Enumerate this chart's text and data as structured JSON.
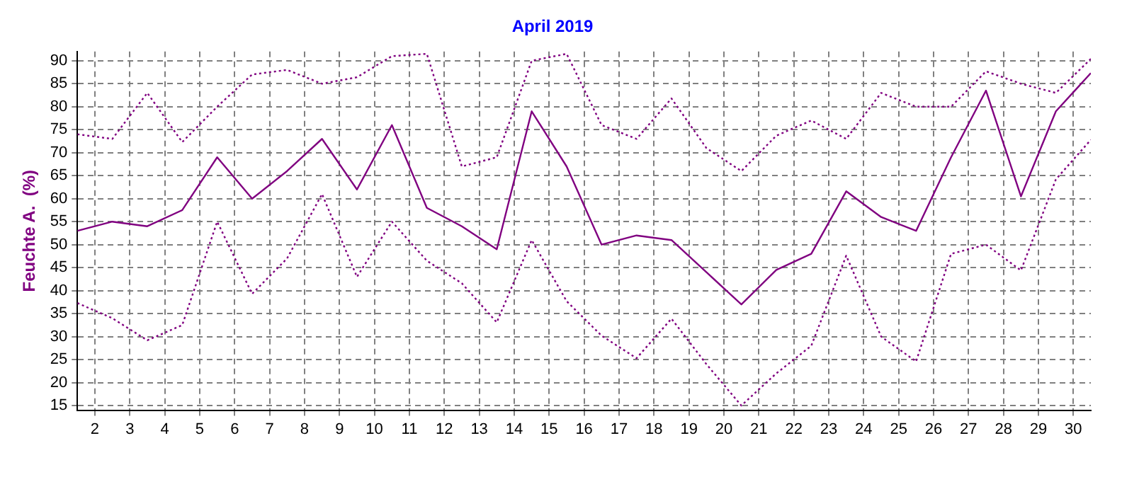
{
  "chart_data": {
    "type": "line",
    "title": "April 2019",
    "ylabel": "Feuchte A.  (%)",
    "x": [
      1.5,
      2.5,
      3.5,
      4.5,
      5.5,
      6.5,
      7.5,
      8.5,
      9.5,
      10.5,
      11.5,
      12.5,
      13.5,
      14.5,
      15.5,
      16.5,
      17.5,
      18.5,
      19.5,
      20.5,
      21.5,
      22.5,
      23.5,
      24.5,
      25.5,
      26.5,
      27.5,
      28.5,
      29.5,
      30.5
    ],
    "series": [
      {
        "color": "#800080",
        "line_style": "dotted",
        "values": [
          74,
          73,
          83,
          72.3,
          80,
          87,
          88,
          85,
          86.4,
          91,
          91.5,
          67,
          69,
          90,
          91.5,
          76,
          73,
          81.8,
          71,
          66,
          73.7,
          77,
          73,
          83,
          80,
          80,
          87.7,
          85,
          83,
          90.4
        ]
      },
      {
        "color": "#800080",
        "line_style": "solid",
        "values": [
          53,
          55,
          54,
          57.5,
          69,
          60,
          66,
          73,
          62,
          76,
          58,
          54,
          49,
          79,
          67,
          50,
          52,
          51,
          44,
          37,
          44.5,
          48,
          61.6,
          56,
          53,
          69,
          83.5,
          60.5,
          79,
          87.3
        ]
      },
      {
        "color": "#800080",
        "line_style": "dotted",
        "values": [
          37.3,
          34,
          29.2,
          32.5,
          55,
          39.3,
          47,
          61,
          43,
          55,
          46.5,
          41.6,
          33.1,
          51,
          37.7,
          30.2,
          25.3,
          33.9,
          24,
          15,
          22,
          28,
          47.6,
          30,
          24.6,
          48,
          50,
          44.4,
          64.2,
          72.8
        ]
      }
    ],
    "xlim": [
      1.5,
      30.5
    ],
    "xticks": [
      2,
      3,
      4,
      5,
      6,
      7,
      8,
      9,
      10,
      11,
      12,
      13,
      14,
      15,
      16,
      17,
      18,
      19,
      20,
      21,
      22,
      23,
      24,
      25,
      26,
      27,
      28,
      29,
      30
    ],
    "ylim": [
      14,
      92
    ],
    "yticks": [
      15,
      20,
      25,
      30,
      35,
      40,
      45,
      50,
      55,
      60,
      65,
      70,
      75,
      80,
      85,
      90
    ],
    "grid": true,
    "marker": "none"
  }
}
